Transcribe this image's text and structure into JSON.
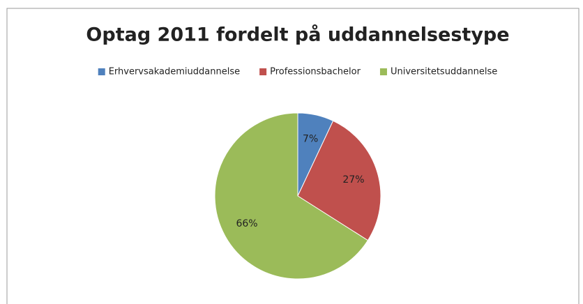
{
  "chart_data": {
    "type": "pie",
    "title": "Optag 2011 fordelt på uddannelsestype",
    "categories": [
      "Erhvervsakademiuddannelse",
      "Professionsbachelor",
      "Universitetsuddannelse"
    ],
    "values": [
      7,
      27,
      66
    ],
    "value_labels": [
      "7%",
      "27%",
      "66%"
    ],
    "colors": [
      "#4f81bd",
      "#c0504d",
      "#9bbb59"
    ],
    "legend": "top"
  }
}
